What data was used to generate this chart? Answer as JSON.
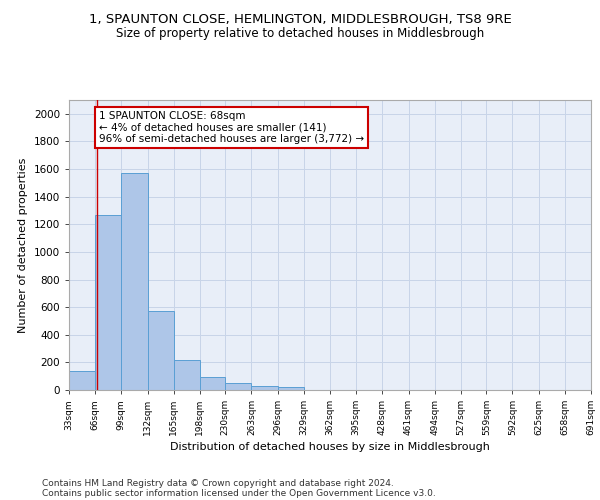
{
  "title": "1, SPAUNTON CLOSE, HEMLINGTON, MIDDLESBROUGH, TS8 9RE",
  "subtitle": "Size of property relative to detached houses in Middlesbrough",
  "xlabel": "Distribution of detached houses by size in Middlesbrough",
  "ylabel": "Number of detached properties",
  "bin_edges": [
    33,
    66,
    99,
    132,
    165,
    198,
    230,
    263,
    296,
    329,
    362,
    395,
    428,
    461,
    494,
    527,
    559,
    592,
    625,
    658,
    691
  ],
  "bar_heights": [
    141,
    1267,
    1573,
    569,
    214,
    95,
    52,
    27,
    19,
    0,
    0,
    0,
    0,
    0,
    0,
    0,
    0,
    0,
    0,
    0
  ],
  "bar_color": "#aec6e8",
  "bar_edge_color": "#5a9fd4",
  "property_size": 68,
  "vline_color": "#cc0000",
  "annotation_text": "1 SPAUNTON CLOSE: 68sqm\n← 4% of detached houses are smaller (141)\n96% of semi-detached houses are larger (3,772) →",
  "annotation_box_color": "#ffffff",
  "annotation_box_edgecolor": "#cc0000",
  "ylim": [
    0,
    2100
  ],
  "yticks": [
    0,
    200,
    400,
    600,
    800,
    1000,
    1200,
    1400,
    1600,
    1800,
    2000
  ],
  "tick_labels": [
    "33sqm",
    "66sqm",
    "99sqm",
    "132sqm",
    "165sqm",
    "198sqm",
    "230sqm",
    "263sqm",
    "296sqm",
    "329sqm",
    "362sqm",
    "395sqm",
    "428sqm",
    "461sqm",
    "494sqm",
    "527sqm",
    "559sqm",
    "592sqm",
    "625sqm",
    "658sqm",
    "691sqm"
  ],
  "grid_color": "#c8d4e8",
  "background_color": "#e8eef8",
  "footer1": "Contains HM Land Registry data © Crown copyright and database right 2024.",
  "footer2": "Contains public sector information licensed under the Open Government Licence v3.0."
}
